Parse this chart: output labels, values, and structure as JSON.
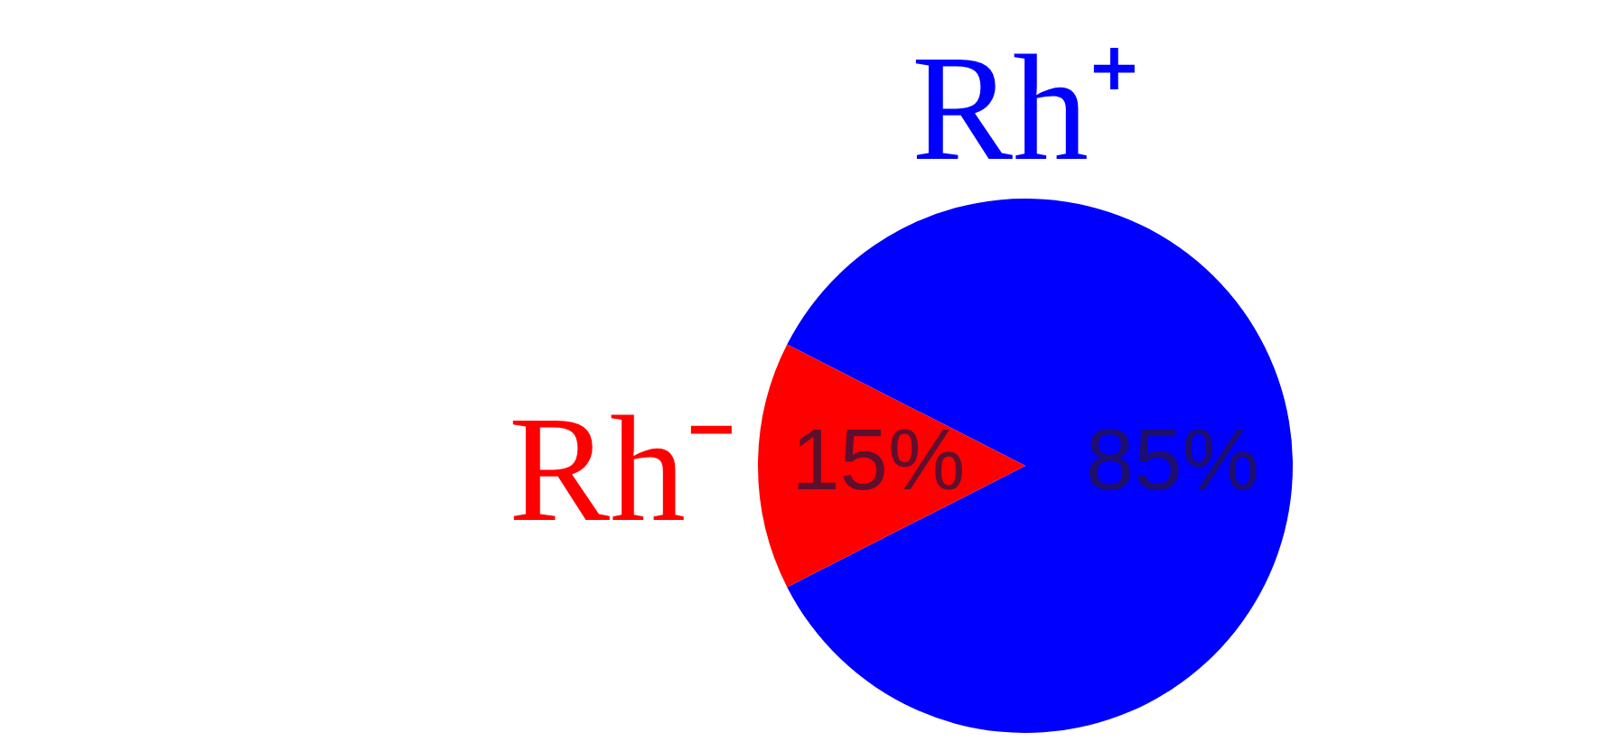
{
  "chart_data": {
    "type": "pie",
    "categories": [
      "Rh⁺",
      "Rh⁻"
    ],
    "values": [
      85,
      15
    ],
    "colors": [
      "#0000ff",
      "#ff0000"
    ],
    "value_labels": [
      "85%",
      "15%"
    ],
    "legend": false
  }
}
